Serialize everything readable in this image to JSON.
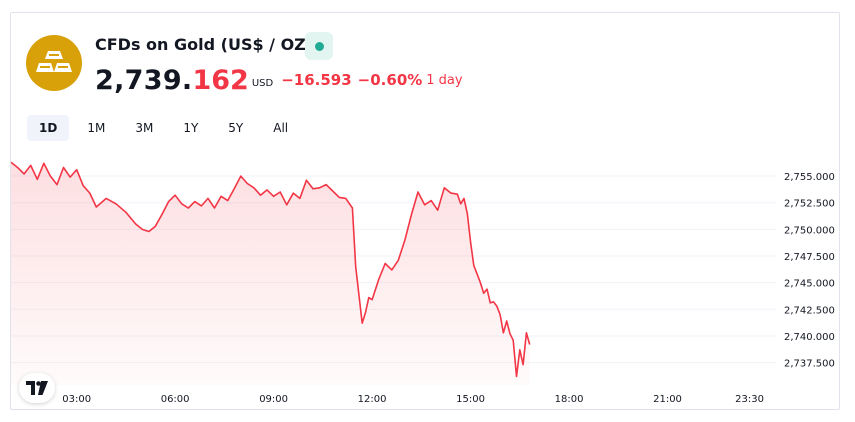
{
  "header": {
    "title": "CFDs on Gold (US$ / OZ)",
    "logo_icon": "gold-bars-icon",
    "live_icon": "market-open-dot-icon",
    "price_int": "2,739.",
    "price_dec": "162",
    "currency": "USD",
    "change": "−16.593",
    "change_pct": "−0.60%",
    "period": "1 day"
  },
  "ranges": [
    {
      "label": "1D",
      "active": true
    },
    {
      "label": "1M",
      "active": false
    },
    {
      "label": "3M",
      "active": false
    },
    {
      "label": "1Y",
      "active": false
    },
    {
      "label": "5Y",
      "active": false
    },
    {
      "label": "All",
      "active": false
    }
  ],
  "colors": {
    "accent_down": "#f23645",
    "gold": "#d8a009",
    "live": "#22ab94"
  },
  "branding": {
    "icon": "tradingview-logo-icon"
  },
  "chart_data": {
    "type": "area",
    "title": "",
    "xlabel": "",
    "ylabel": "",
    "x_ticks": [
      "03:00",
      "06:00",
      "09:00",
      "12:00",
      "15:00",
      "18:00",
      "21:00",
      "23:30"
    ],
    "y_ticks": [
      "2,737.500",
      "2,740.000",
      "2,742.500",
      "2,745.000",
      "2,747.500",
      "2,750.000",
      "2,752.500",
      "2,755.000"
    ],
    "xlim": [
      1.0,
      24.0
    ],
    "ylim": [
      2735.4,
      2756.6
    ],
    "grid": "horizontal",
    "series": [
      {
        "x": [
          1.0,
          1.2,
          1.4,
          1.6,
          1.8,
          2.0,
          2.2,
          2.4,
          2.6,
          2.8,
          3.0,
          3.2,
          3.4,
          3.6,
          3.9,
          4.2,
          4.5,
          4.8,
          5.0,
          5.2,
          5.4,
          5.6,
          5.8,
          6.0,
          6.2,
          6.4,
          6.6,
          6.8,
          7.0,
          7.2,
          7.4,
          7.6,
          7.8,
          8.0,
          8.2,
          8.4,
          8.6,
          8.8,
          9.0,
          9.2,
          9.4,
          9.6,
          9.8,
          10.0,
          10.2,
          10.4,
          10.6,
          10.8,
          11.0,
          11.2,
          11.4,
          11.5,
          11.6,
          11.7,
          11.8,
          11.9,
          12.0,
          12.2,
          12.4,
          12.6,
          12.8,
          13.0,
          13.2,
          13.4,
          13.6,
          13.8,
          14.0,
          14.2,
          14.4,
          14.6,
          14.7,
          14.8,
          14.9,
          15.0,
          15.1,
          15.2,
          15.3,
          15.4,
          15.5,
          15.6,
          15.7,
          15.8,
          15.9,
          16.0,
          16.1,
          16.2,
          16.3,
          16.4,
          16.5,
          16.6,
          16.7,
          16.8
        ],
        "values": [
          2756.3,
          2755.8,
          2755.2,
          2756.0,
          2754.7,
          2756.2,
          2755.0,
          2754.2,
          2755.8,
          2754.9,
          2755.6,
          2754.1,
          2753.4,
          2752.1,
          2752.9,
          2752.4,
          2751.6,
          2750.5,
          2750.0,
          2749.8,
          2750.3,
          2751.4,
          2752.6,
          2753.2,
          2752.4,
          2752.0,
          2752.6,
          2752.2,
          2752.9,
          2752.0,
          2753.1,
          2752.7,
          2753.8,
          2755.0,
          2754.3,
          2753.9,
          2753.2,
          2753.7,
          2753.1,
          2753.5,
          2752.3,
          2753.4,
          2752.9,
          2754.6,
          2753.8,
          2753.9,
          2754.2,
          2753.6,
          2753.0,
          2752.9,
          2752.0,
          2746.5,
          2743.8,
          2741.2,
          2742.2,
          2743.6,
          2743.4,
          2745.3,
          2746.8,
          2746.2,
          2747.1,
          2749.0,
          2751.4,
          2753.5,
          2752.3,
          2752.7,
          2751.8,
          2753.9,
          2753.4,
          2753.3,
          2752.4,
          2752.9,
          2751.5,
          2748.8,
          2746.6,
          2745.8,
          2745.0,
          2744.0,
          2744.4,
          2743.1,
          2743.2,
          2742.8,
          2742.0,
          2740.3,
          2741.4,
          2740.2,
          2739.6,
          2736.2,
          2738.7,
          2737.3,
          2740.3,
          2739.2
        ]
      }
    ]
  }
}
